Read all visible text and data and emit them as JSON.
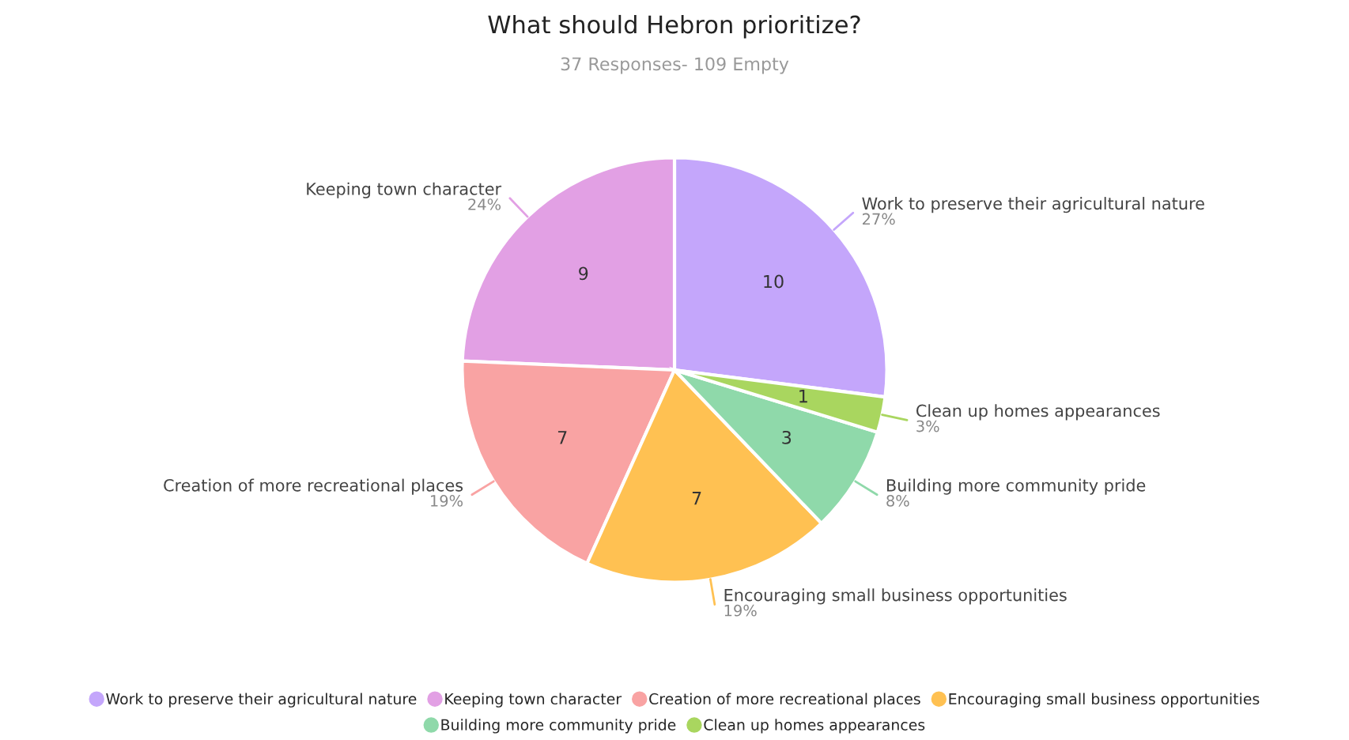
{
  "chart_data": {
    "type": "pie",
    "title": "What should Hebron prioritize?",
    "subtitle": "37 Responses- 109 Empty",
    "categories": [
      "Work to preserve their agricultural nature",
      "Keeping town character",
      "Creation of more recreational places",
      "Encouraging small business opportunities",
      "Building more community pride",
      "Clean up homes appearances"
    ],
    "values": [
      10,
      9,
      7,
      7,
      3,
      1
    ],
    "annotations": [
      "27%",
      "24%",
      "19%",
      "19%",
      "8%",
      "3%"
    ],
    "data_labels": true,
    "colors": [
      "#c4a6fb",
      "#e2a0e4",
      "#f9a3a3",
      "#ffc152",
      "#8fd9aa",
      "#a9d65f"
    ],
    "legend": "bottom"
  }
}
